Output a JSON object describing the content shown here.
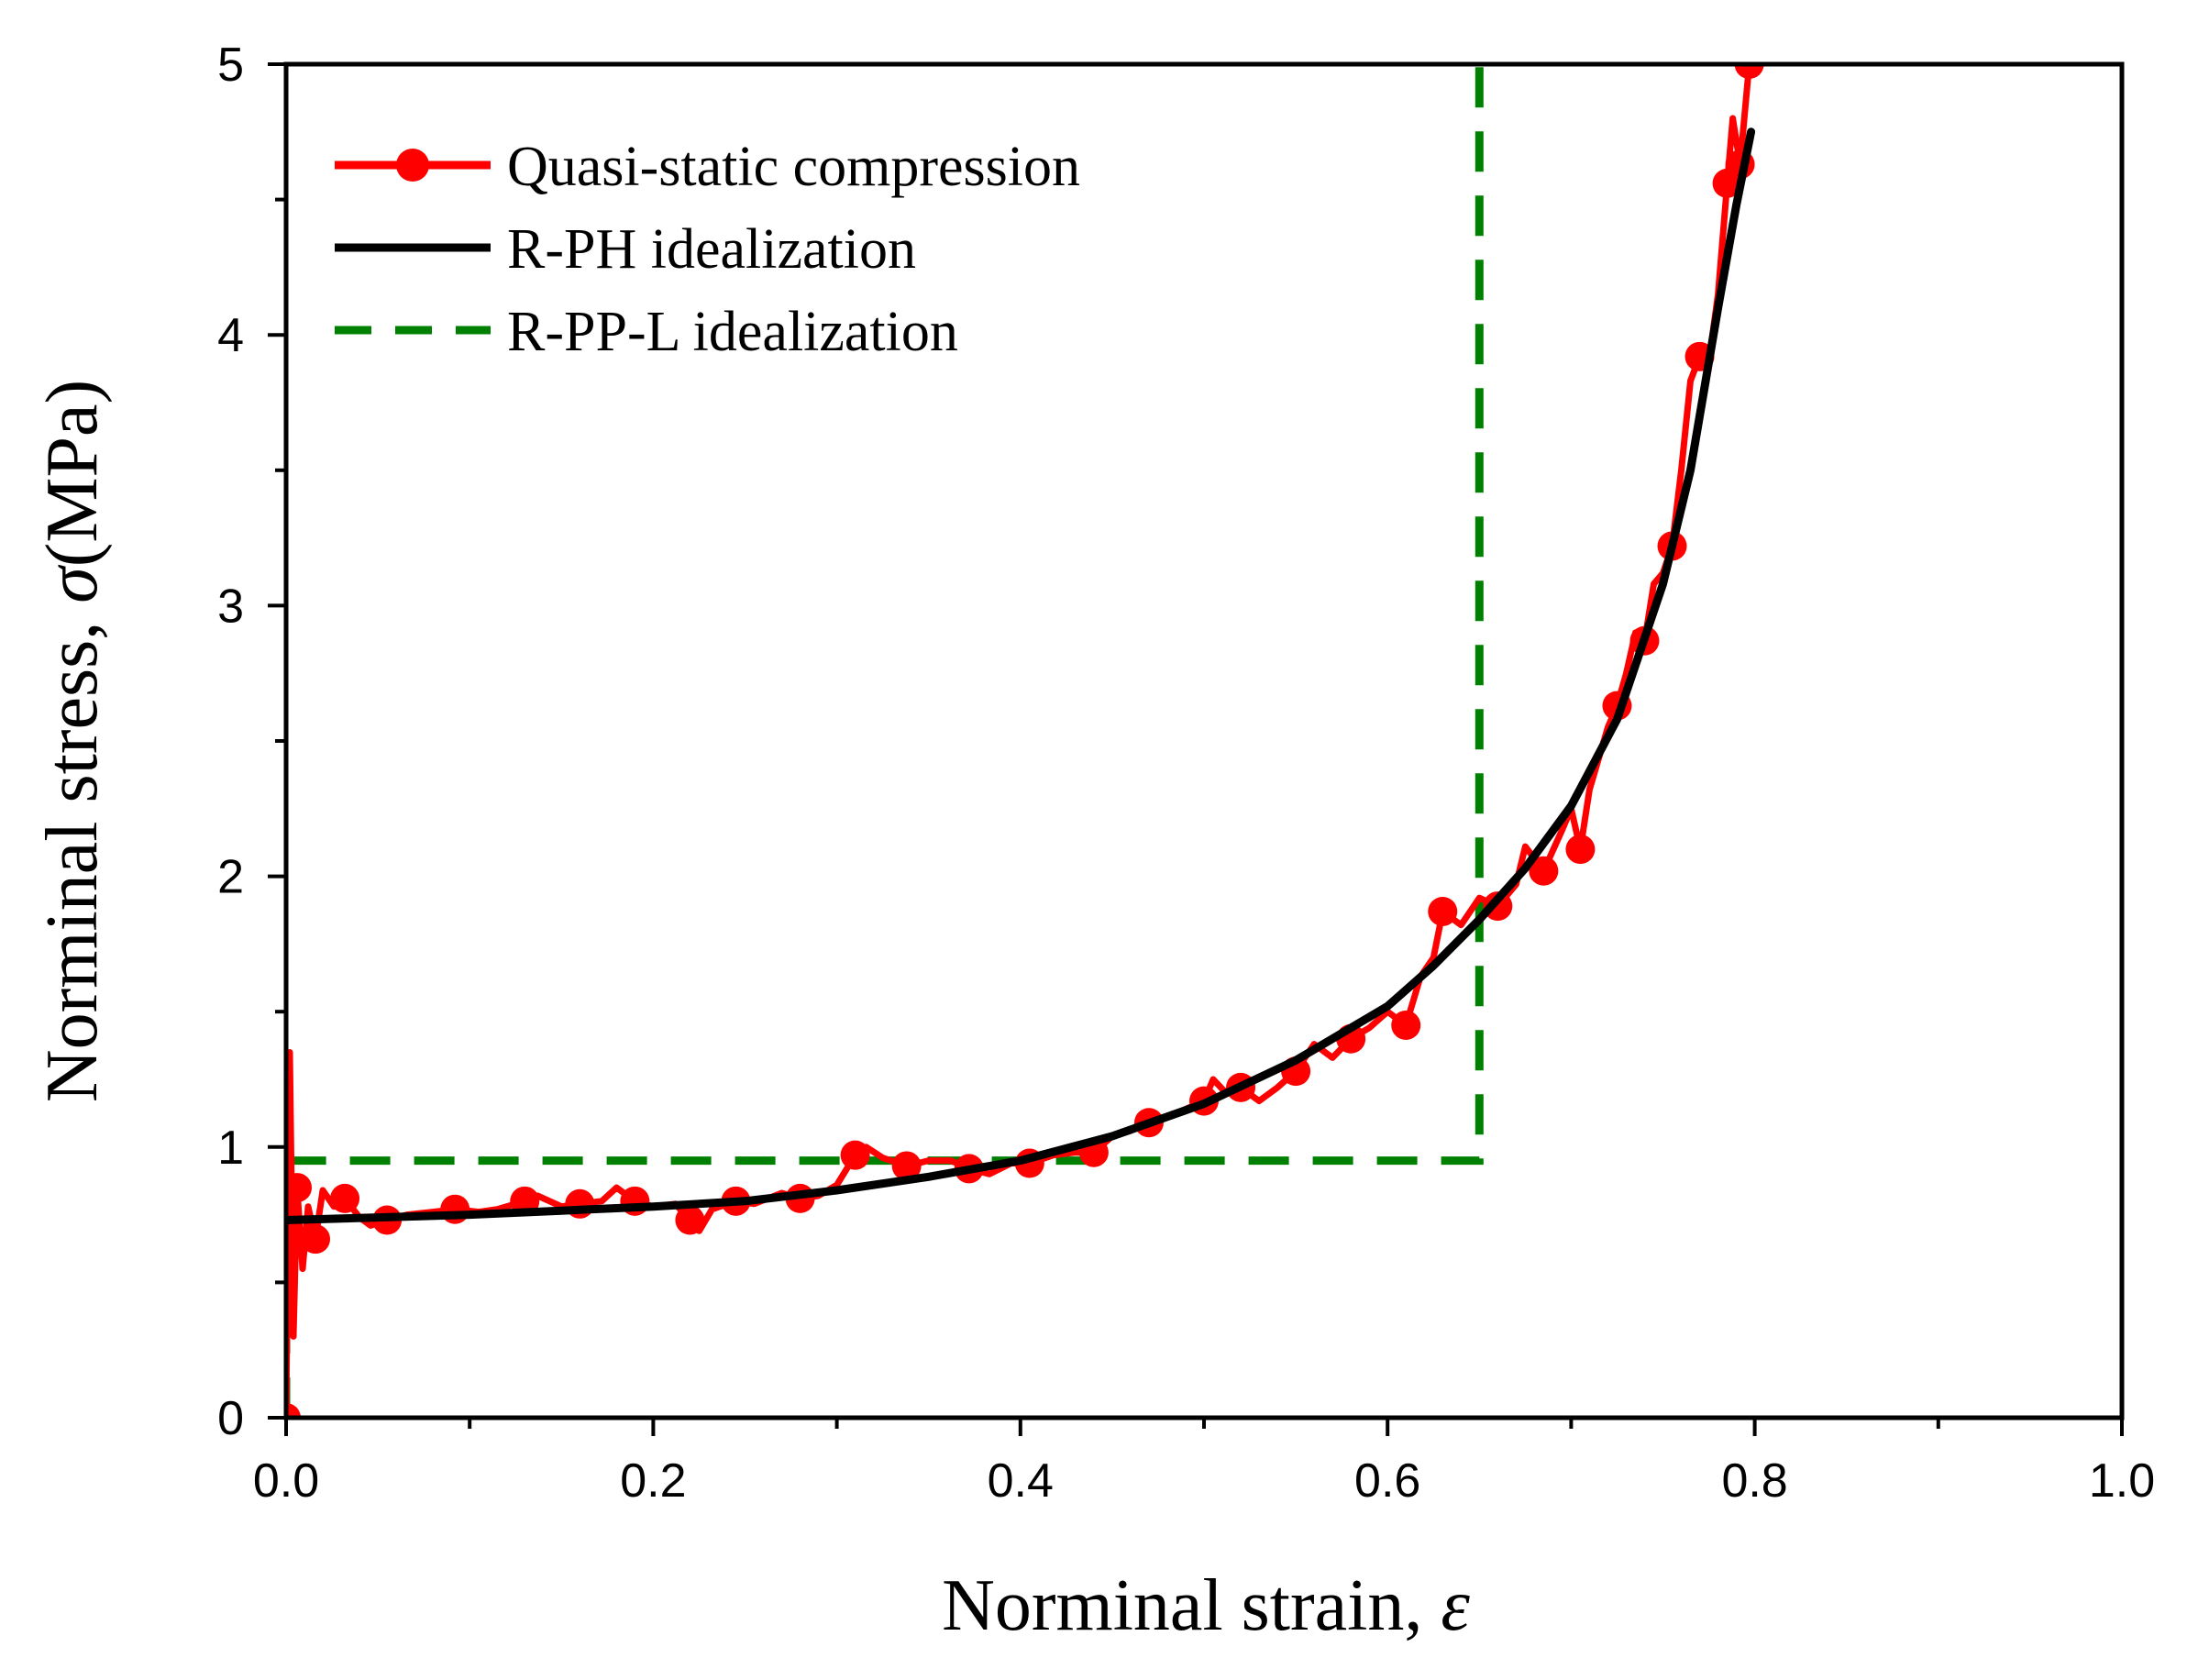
{
  "chart_data": {
    "type": "line",
    "title": "",
    "xlabel": "Norminal strain,",
    "xlabel_symbol": "ε",
    "ylabel": "Norminal stress,",
    "ylabel_symbol": "σ",
    "ylabel_unit": "(MPa)",
    "xlim": [
      0.0,
      1.0
    ],
    "ylim": [
      0,
      5
    ],
    "x_ticks": [
      "0.0",
      "0.2",
      "0.4",
      "0.6",
      "0.8",
      "1.0"
    ],
    "y_ticks": [
      "0",
      "1",
      "2",
      "3",
      "4",
      "5"
    ],
    "grid": false,
    "legend_position": "top-left",
    "series": [
      {
        "name": "Quasi-static compression",
        "color": "#ff0000",
        "style": "line-with-circle-markers",
        "points": [
          [
            0.0,
            0.0
          ],
          [
            0.002,
            1.35
          ],
          [
            0.004,
            0.3
          ],
          [
            0.006,
            0.85
          ],
          [
            0.009,
            0.55
          ],
          [
            0.012,
            0.78
          ],
          [
            0.016,
            0.66
          ],
          [
            0.02,
            0.84
          ],
          [
            0.026,
            0.78
          ],
          [
            0.032,
            0.81
          ],
          [
            0.04,
            0.74
          ],
          [
            0.046,
            0.71
          ],
          [
            0.055,
            0.73
          ],
          [
            0.066,
            0.75
          ],
          [
            0.08,
            0.76
          ],
          [
            0.092,
            0.77
          ],
          [
            0.105,
            0.76
          ],
          [
            0.115,
            0.77
          ],
          [
            0.13,
            0.8
          ],
          [
            0.137,
            0.82
          ],
          [
            0.15,
            0.78
          ],
          [
            0.16,
            0.79
          ],
          [
            0.172,
            0.8
          ],
          [
            0.18,
            0.85
          ],
          [
            0.19,
            0.8
          ],
          [
            0.2,
            0.78
          ],
          [
            0.212,
            0.79
          ],
          [
            0.22,
            0.73
          ],
          [
            0.225,
            0.69
          ],
          [
            0.232,
            0.77
          ],
          [
            0.245,
            0.8
          ],
          [
            0.255,
            0.79
          ],
          [
            0.27,
            0.83
          ],
          [
            0.28,
            0.81
          ],
          [
            0.29,
            0.82
          ],
          [
            0.3,
            0.86
          ],
          [
            0.31,
            0.97
          ],
          [
            0.316,
            1.0
          ],
          [
            0.325,
            0.96
          ],
          [
            0.338,
            0.93
          ],
          [
            0.35,
            0.95
          ],
          [
            0.362,
            0.95
          ],
          [
            0.372,
            0.92
          ],
          [
            0.383,
            0.9
          ],
          [
            0.395,
            0.94
          ],
          [
            0.405,
            0.94
          ],
          [
            0.418,
            0.97
          ],
          [
            0.43,
            0.98
          ],
          [
            0.44,
            0.98
          ],
          [
            0.45,
            1.04
          ],
          [
            0.46,
            1.06
          ],
          [
            0.47,
            1.09
          ],
          [
            0.48,
            1.11
          ],
          [
            0.49,
            1.14
          ],
          [
            0.5,
            1.17
          ],
          [
            0.505,
            1.25
          ],
          [
            0.512,
            1.2
          ],
          [
            0.52,
            1.22
          ],
          [
            0.53,
            1.17
          ],
          [
            0.54,
            1.22
          ],
          [
            0.55,
            1.28
          ],
          [
            0.56,
            1.38
          ],
          [
            0.57,
            1.33
          ],
          [
            0.58,
            1.4
          ],
          [
            0.59,
            1.44
          ],
          [
            0.6,
            1.5
          ],
          [
            0.61,
            1.45
          ],
          [
            0.618,
            1.63
          ],
          [
            0.625,
            1.7
          ],
          [
            0.63,
            1.87
          ],
          [
            0.64,
            1.82
          ],
          [
            0.65,
            1.92
          ],
          [
            0.66,
            1.89
          ],
          [
            0.67,
            1.97
          ],
          [
            0.675,
            2.11
          ],
          [
            0.685,
            2.02
          ],
          [
            0.695,
            2.17
          ],
          [
            0.7,
            2.25
          ],
          [
            0.705,
            2.1
          ],
          [
            0.71,
            2.32
          ],
          [
            0.72,
            2.55
          ],
          [
            0.725,
            2.63
          ],
          [
            0.73,
            2.75
          ],
          [
            0.735,
            2.9
          ],
          [
            0.74,
            2.87
          ],
          [
            0.745,
            3.08
          ],
          [
            0.75,
            3.12
          ],
          [
            0.755,
            3.22
          ],
          [
            0.76,
            3.5
          ],
          [
            0.765,
            3.83
          ],
          [
            0.77,
            3.92
          ],
          [
            0.775,
            3.9
          ],
          [
            0.78,
            4.15
          ],
          [
            0.785,
            4.56
          ],
          [
            0.788,
            4.8
          ],
          [
            0.792,
            4.63
          ],
          [
            0.797,
            5.0
          ]
        ]
      },
      {
        "name": "R-PH idealization",
        "color": "#000000",
        "style": "solid-line",
        "points": [
          [
            0.0,
            0.73
          ],
          [
            0.05,
            0.74
          ],
          [
            0.1,
            0.75
          ],
          [
            0.15,
            0.765
          ],
          [
            0.2,
            0.78
          ],
          [
            0.25,
            0.8
          ],
          [
            0.3,
            0.84
          ],
          [
            0.35,
            0.89
          ],
          [
            0.4,
            0.95
          ],
          [
            0.45,
            1.04
          ],
          [
            0.5,
            1.16
          ],
          [
            0.55,
            1.32
          ],
          [
            0.6,
            1.52
          ],
          [
            0.625,
            1.67
          ],
          [
            0.65,
            1.84
          ],
          [
            0.675,
            2.03
          ],
          [
            0.7,
            2.26
          ],
          [
            0.725,
            2.58
          ],
          [
            0.75,
            3.08
          ],
          [
            0.765,
            3.5
          ],
          [
            0.78,
            4.1
          ],
          [
            0.79,
            4.48
          ],
          [
            0.798,
            4.75
          ]
        ]
      },
      {
        "name": "R-PP-L idealization",
        "color": "#008000",
        "style": "dashed-line",
        "points": [
          [
            0.0,
            0.0
          ],
          [
            0.0,
            0.95
          ],
          [
            0.65,
            0.95
          ],
          [
            0.65,
            5.0
          ]
        ]
      }
    ]
  }
}
